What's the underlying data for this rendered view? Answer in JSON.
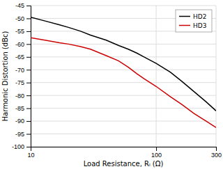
{
  "chart_data": {
    "type": "line",
    "xlabel": "Load Resistance, Rₗ (Ω)",
    "ylabel": "Harmonic Distortion (dBc)",
    "x": [
      10,
      13,
      17,
      20,
      25,
      30,
      40,
      50,
      60,
      70,
      80,
      100,
      130,
      160,
      200,
      250,
      300
    ],
    "series": [
      {
        "name": "HD2",
        "color": "#000000",
        "values": [
          -49.5,
          -51.0,
          -52.5,
          -53.5,
          -55.0,
          -56.5,
          -58.5,
          -60.5,
          -62.0,
          -63.5,
          -65.0,
          -67.5,
          -71.0,
          -74.5,
          -78.5,
          -82.5,
          -86.0
        ]
      },
      {
        "name": "HD3",
        "color": "#cc0000",
        "values": [
          -57.5,
          -58.5,
          -59.5,
          -60.0,
          -61.0,
          -62.0,
          -64.5,
          -66.5,
          -69.0,
          -71.5,
          -73.5,
          -76.5,
          -80.5,
          -83.5,
          -87.0,
          -90.0,
          -92.5
        ]
      }
    ],
    "xlim": [
      10,
      300
    ],
    "ylim": [
      -100,
      -45
    ],
    "xticks": [
      10,
      100,
      300
    ],
    "yticks": [
      -45,
      -50,
      -55,
      -60,
      -65,
      -70,
      -75,
      -80,
      -85,
      -90,
      -95,
      -100
    ],
    "log": "x",
    "grid": true,
    "legend": "upper right"
  }
}
